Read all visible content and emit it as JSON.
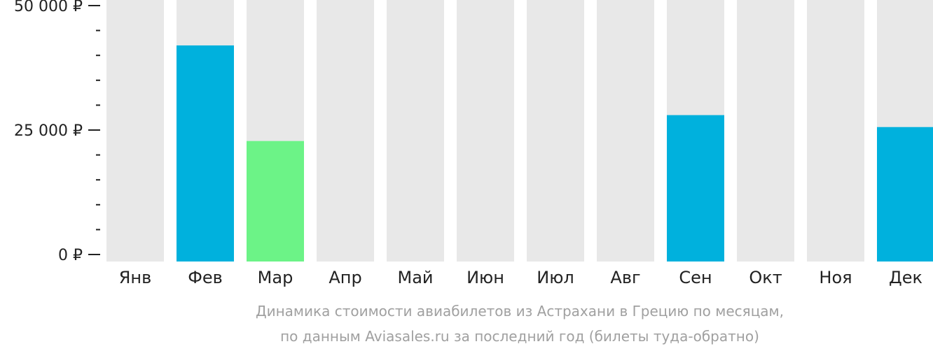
{
  "chart_data": {
    "type": "bar",
    "categories": [
      "Янв",
      "Фев",
      "Мар",
      "Апр",
      "Май",
      "Июн",
      "Июл",
      "Авг",
      "Сен",
      "Окт",
      "Ноя",
      "Дек"
    ],
    "values": [
      null,
      42000,
      22800,
      null,
      null,
      null,
      null,
      null,
      28000,
      null,
      null,
      25600
    ],
    "highlight_index": 2,
    "ylim": [
      0,
      50000
    ],
    "y_ticks": [
      {
        "value": 0,
        "label": "0 ₽"
      },
      {
        "value": 25000,
        "label": "25 000 ₽"
      },
      {
        "value": 50000,
        "label": "50 000 ₽"
      }
    ],
    "y_minor_step": 5000,
    "title": "Динамика стоимости авиабилетов из Астрахани в Грецию по месяцам,",
    "subtitle": "по данным Aviasales.ru за последний год (билеты туда-обратно)",
    "colors": {
      "bar": "#00b1dd",
      "bar_highlight": "#6cf387",
      "background_bar": "#e8e8e8",
      "axis": "#222222",
      "caption": "#a0a0a0"
    },
    "grid": false,
    "legend": "none"
  }
}
